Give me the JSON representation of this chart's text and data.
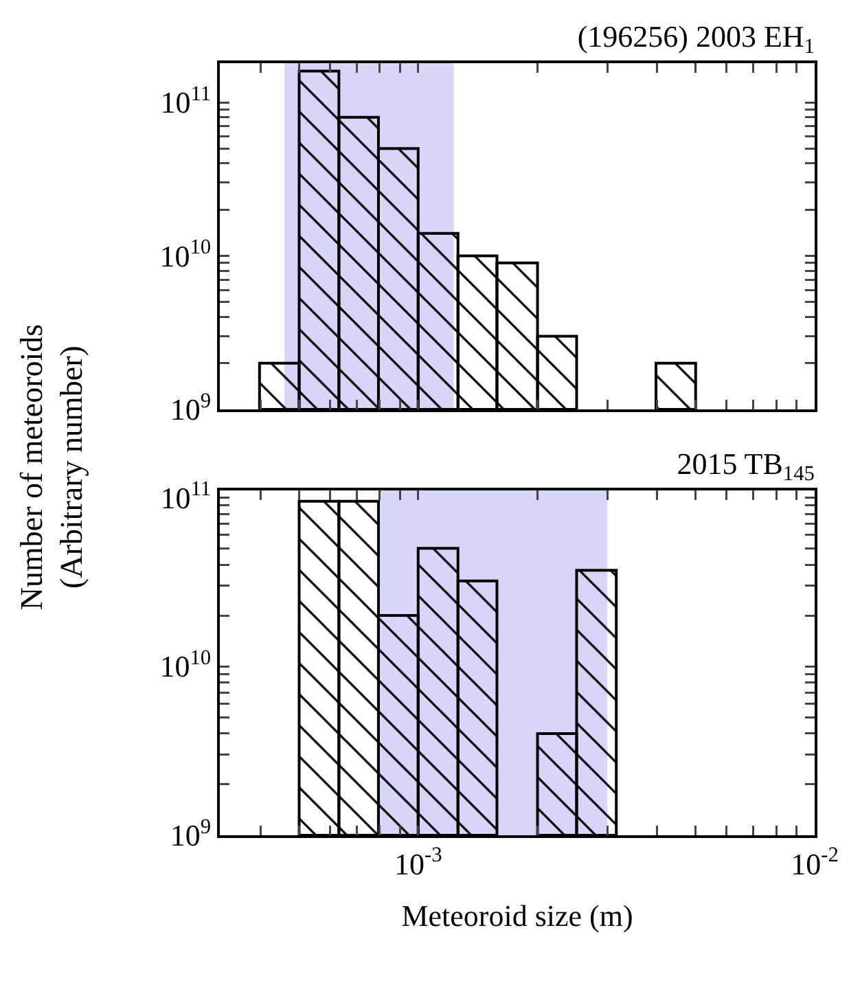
{
  "chart_data": [
    {
      "type": "histogram",
      "title": "(196256) 2003 EH$_{1}$",
      "ylabel": "Number of meteoroids\n(Arbitrary number)",
      "bins": [
        0.000398,
        0.000501,
        0.000631,
        0.000794,
        0.001,
        0.00126,
        0.00158,
        0.002,
        0.00251,
        0.00398,
        0.00501
      ],
      "values": [
        2000000000.0,
        160000000000.0,
        80000000000.0,
        50000000000.0,
        14000000000.0,
        10000000000.0,
        9000000000.0,
        3000000000.0,
        null,
        2000000000.0
      ],
      "color": "#000000",
      "log": "xy",
      "grid": false,
      "tick_labels": "y",
      "xlim": [
        0.000316,
        0.01
      ],
      "ylim": [
        1000000000.0,
        180000000000.0
      ],
      "xticks": [
        {
          "value": 0.0004,
          "label": null
        },
        {
          "value": 0.0005,
          "label": null
        },
        {
          "value": 0.0006,
          "label": null
        },
        {
          "value": 0.0007,
          "label": null
        },
        {
          "value": 0.0008,
          "label": null
        },
        {
          "value": 0.0009,
          "label": null
        },
        {
          "value": 0.001,
          "label": null
        },
        {
          "value": 0.002,
          "label": null
        },
        {
          "value": 0.003,
          "label": null
        },
        {
          "value": 0.004,
          "label": null
        },
        {
          "value": 0.005,
          "label": null
        },
        {
          "value": 0.006,
          "label": null
        },
        {
          "value": 0.007,
          "label": null
        },
        {
          "value": 0.008,
          "label": null
        },
        {
          "value": 0.009,
          "label": null
        },
        {
          "value": 0.01,
          "label": null
        }
      ],
      "yticks": [
        {
          "value": 1000000000.0,
          "label": "10$^{9}$"
        },
        {
          "value": 2000000000.0,
          "label": null
        },
        {
          "value": 3000000000.0,
          "label": null
        },
        {
          "value": 4000000000.0,
          "label": null
        },
        {
          "value": 5000000000.0,
          "label": null
        },
        {
          "value": 6000000000.0,
          "label": null
        },
        {
          "value": 7000000000.0,
          "label": null
        },
        {
          "value": 8000000000.0,
          "label": null
        },
        {
          "value": 9000000000.0,
          "label": null
        },
        {
          "value": 10000000000.0,
          "label": "10$^{10}$"
        },
        {
          "value": 20000000000.0,
          "label": null
        },
        {
          "value": 30000000000.0,
          "label": null
        },
        {
          "value": 40000000000.0,
          "label": null
        },
        {
          "value": 50000000000.0,
          "label": null
        },
        {
          "value": 60000000000.0,
          "label": null
        },
        {
          "value": 70000000000.0,
          "label": null
        },
        {
          "value": 80000000000.0,
          "label": null
        },
        {
          "value": 90000000000.0,
          "label": null
        },
        {
          "value": 100000000000.0,
          "label": "10$^{11}$"
        }
      ],
      "bands": [
        {
          "axis": "x",
          "from": 0.00046,
          "to": 0.00123,
          "color": "#d6d6fa"
        }
      ]
    },
    {
      "type": "histogram",
      "title": "2015 TB$_{145}$",
      "xlabel": "Meteoroid size (m)",
      "bins": [
        0.000501,
        0.000631,
        0.000794,
        0.001,
        0.00126,
        0.00158,
        0.002,
        0.00251,
        0.00316
      ],
      "values": [
        95000000000.0,
        95000000000.0,
        20000000000.0,
        50000000000.0,
        32000000000.0,
        null,
        4000000000.0,
        37000000000.0
      ],
      "color": "#000000",
      "log": "xy",
      "grid": false,
      "xlim": [
        0.000316,
        0.01
      ],
      "ylim": [
        1000000000.0,
        110000000000.0
      ],
      "xticks": [
        {
          "value": 0.0004,
          "label": null
        },
        {
          "value": 0.0005,
          "label": null
        },
        {
          "value": 0.0006,
          "label": null
        },
        {
          "value": 0.0007,
          "label": null
        },
        {
          "value": 0.0008,
          "label": null
        },
        {
          "value": 0.0009,
          "label": null
        },
        {
          "value": 0.001,
          "label": "10$^{-3}$"
        },
        {
          "value": 0.002,
          "label": null
        },
        {
          "value": 0.003,
          "label": null
        },
        {
          "value": 0.004,
          "label": null
        },
        {
          "value": 0.005,
          "label": null
        },
        {
          "value": 0.006,
          "label": null
        },
        {
          "value": 0.007,
          "label": null
        },
        {
          "value": 0.008,
          "label": null
        },
        {
          "value": 0.009,
          "label": null
        },
        {
          "value": 0.01,
          "label": "10$^{-2}$"
        }
      ],
      "yticks": [
        {
          "value": 1000000000.0,
          "label": "10$^{9}$"
        },
        {
          "value": 2000000000.0,
          "label": null
        },
        {
          "value": 3000000000.0,
          "label": null
        },
        {
          "value": 4000000000.0,
          "label": null
        },
        {
          "value": 5000000000.0,
          "label": null
        },
        {
          "value": 6000000000.0,
          "label": null
        },
        {
          "value": 7000000000.0,
          "label": null
        },
        {
          "value": 8000000000.0,
          "label": null
        },
        {
          "value": 9000000000.0,
          "label": null
        },
        {
          "value": 10000000000.0,
          "label": "10$^{10}$"
        },
        {
          "value": 20000000000.0,
          "label": null
        },
        {
          "value": 30000000000.0,
          "label": null
        },
        {
          "value": 40000000000.0,
          "label": null
        },
        {
          "value": 50000000000.0,
          "label": null
        },
        {
          "value": 60000000000.0,
          "label": null
        },
        {
          "value": 70000000000.0,
          "label": null
        },
        {
          "value": 80000000000.0,
          "label": null
        },
        {
          "value": 90000000000.0,
          "label": null
        },
        {
          "value": 100000000000.0,
          "label": "10$^{11}$"
        }
      ],
      "bands": [
        {
          "axis": "x",
          "from": 0.000794,
          "to": 0.003,
          "color": "#d6d6fa"
        }
      ]
    }
  ]
}
